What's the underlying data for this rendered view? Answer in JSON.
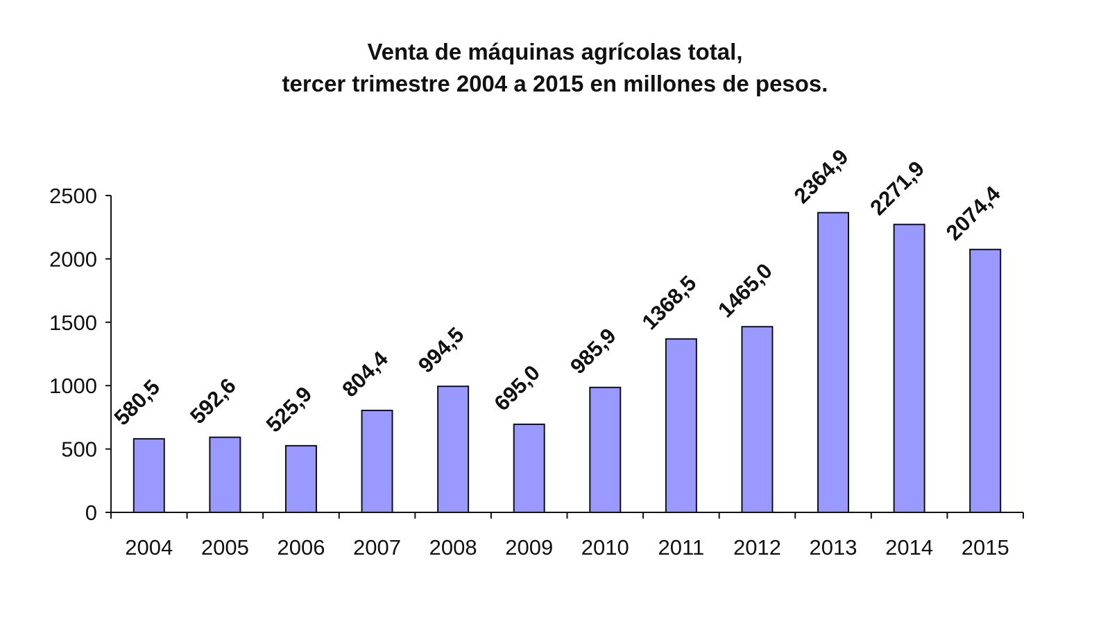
{
  "chart_data": {
    "type": "bar",
    "title": "Venta de máquinas agrícolas total,",
    "subtitle": "tercer trimestre 2004 a 2015 en millones de pesos.",
    "xlabel": "",
    "ylabel": "",
    "categories": [
      "2004",
      "2005",
      "2006",
      "2007",
      "2008",
      "2009",
      "2010",
      "2011",
      "2012",
      "2013",
      "2014",
      "2015"
    ],
    "values": [
      580.5,
      592.6,
      525.9,
      804.4,
      994.5,
      695.0,
      985.9,
      1368.5,
      1465.0,
      2364.9,
      2271.9,
      2074.4
    ],
    "data_labels": [
      "580,5",
      "592,6",
      "525,9",
      "804,4",
      "994,5",
      "695,0",
      "985,9",
      "1368,5",
      "1465,0",
      "2364,9",
      "2271,9",
      "2074,4"
    ],
    "ylim": [
      0,
      2500
    ],
    "yticks": [
      "0",
      "500",
      "1000",
      "1500",
      "2000",
      "2500"
    ],
    "grid": false,
    "legend": "none",
    "colors": {
      "bar_fill": "#9999ff",
      "bar_stroke": "#111111",
      "axis": "#111111"
    }
  }
}
